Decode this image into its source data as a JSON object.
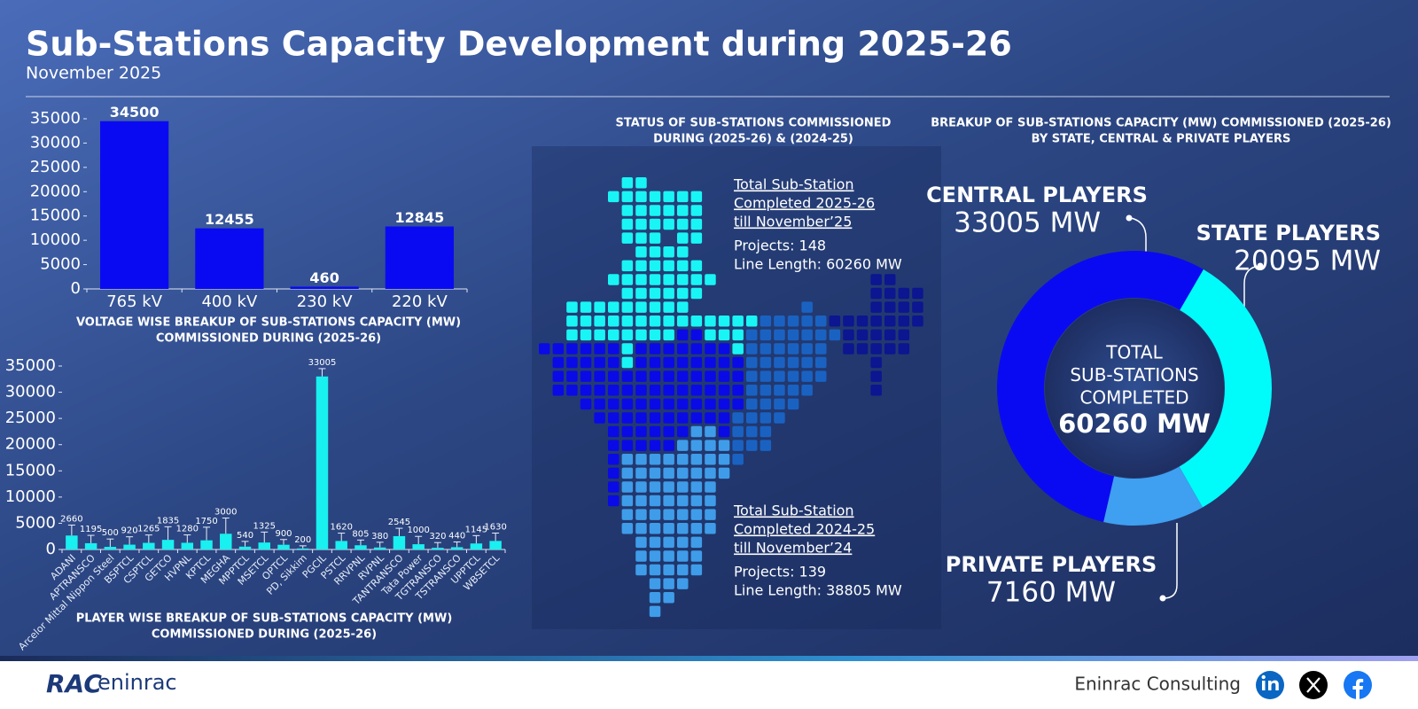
{
  "header": {
    "title": "Sub-Stations Capacity Development during 2025-26",
    "subtitle": "November 2025"
  },
  "chart_data": [
    {
      "type": "bar",
      "title": [
        "VOLTAGE WISE BREAKUP OF SUB-STATIONS CAPACITY (MW)",
        "COMMISSIONED DURING (2025-26)"
      ],
      "categories": [
        "765 kV",
        "400 kV",
        "230 kV",
        "220 kV"
      ],
      "values": [
        34500,
        12455,
        460,
        12845
      ],
      "color": "#0a0af2",
      "ylim": [
        0,
        35000
      ],
      "yticks": [
        0,
        5000,
        10000,
        15000,
        20000,
        25000,
        30000,
        35000
      ]
    },
    {
      "type": "bar",
      "title": [
        "PLAYER WISE BREAKUP OF SUB-STATIONS CAPACITY (MW)",
        "COMMISSIONED DURING (2025-26)"
      ],
      "categories": [
        "ADANI",
        "APTRANSCO",
        "Arcelor Mittal Nippon Steel",
        "BSPTCL",
        "CSPTCL",
        "GETCO",
        "HVPNL",
        "KPTCL",
        "MEGHA",
        "MPPTCL",
        "MSETCL",
        "OPTCL",
        "PD, Sikkim",
        "PGCIL",
        "PSTCL",
        "RRVPNL",
        "RVPNL",
        "TANTRANSCO",
        "Tata Power",
        "TGTRANSCO",
        "TSTRANSCO",
        "UPPTCL",
        "WBSETCL"
      ],
      "values": [
        2660,
        1195,
        500,
        920,
        1265,
        1835,
        1280,
        1750,
        3000,
        540,
        1325,
        900,
        200,
        33005,
        1620,
        805,
        380,
        2545,
        1000,
        320,
        440,
        1145,
        1630
      ],
      "errors": [
        2000,
        1500,
        1500,
        1500,
        1500,
        2500,
        1500,
        2500,
        3000,
        1000,
        2000,
        1000,
        500,
        1500,
        1500,
        1000,
        1000,
        1500,
        1500,
        1000,
        1000,
        1500,
        1500
      ],
      "color": "#19f0f0",
      "ylim": [
        0,
        35000
      ],
      "yticks": [
        0,
        5000,
        10000,
        15000,
        20000,
        25000,
        30000,
        35000
      ]
    },
    {
      "type": "donut",
      "title": [
        "BREAKUP OF SUB-STATIONS CAPACITY (MW) COMMISSIONED (2025-26)",
        "BY STATE, CENTRAL & PRIVATE PLAYERS"
      ],
      "categories": [
        "CENTRAL PLAYERS",
        "STATE PLAYERS",
        "PRIVATE PLAYERS"
      ],
      "values": [
        33005,
        20095,
        7160
      ],
      "value_labels": [
        "33005 MW",
        "20095 MW",
        "7160 MW"
      ],
      "colors": [
        "#0a0af2",
        "#00fbfb",
        "#3f9ff0"
      ],
      "center_label": [
        "TOTAL",
        "SUB-STATIONS",
        "COMPLETED"
      ],
      "center_value": "60260 MW"
    }
  ],
  "map_panel": {
    "title": [
      "STATUS OF SUB-STATIONS COMMISSIONED",
      "DURING (2025-26) & (2024-25)"
    ],
    "blocks": [
      {
        "heading": [
          "Total Sub-Station",
          "Completed 2025-26",
          "till November’25"
        ],
        "projects": "Projects: 148",
        "line_length": "Line Length: 60260 MW"
      },
      {
        "heading": [
          "Total Sub-Station",
          "Completed 2024-25",
          "till November’24"
        ],
        "projects": "Projects: 139",
        "line_length": "Line Length: 38805 MW"
      }
    ]
  },
  "footer": {
    "logo": [
      "RAC",
      "eninrac"
    ],
    "company": "Eninrac Consulting"
  }
}
